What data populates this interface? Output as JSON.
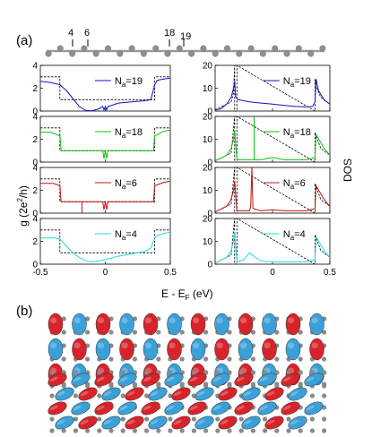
{
  "figure": {
    "panel_a_label": "(a)",
    "panel_b_label": "(b)",
    "chain_markers": [
      "4",
      "6",
      "18",
      "19"
    ],
    "left_ylabel_parts": {
      "g": "g (2e",
      "sup": "2",
      "tail": "/h)"
    },
    "right_ylabel": "DOS",
    "xlabel_parts": {
      "e": "E - E",
      "sub": "F",
      "tail": " (eV)"
    },
    "left_xticks": [
      "-0.5",
      "0",
      "0.5"
    ],
    "right_xticks": [
      "0",
      "0.5"
    ],
    "left_yticks": [
      "0",
      "2",
      "4"
    ],
    "right_yticks": [
      "0",
      "10",
      "20"
    ],
    "legend_prefix": "N",
    "legend_sub": "a",
    "rows": [
      {
        "na": "=19",
        "color": "#1010d0"
      },
      {
        "na": "=18",
        "color": "#10c010"
      },
      {
        "na": "=6",
        "color": "#c01010"
      },
      {
        "na": "=4",
        "color": "#20d8e0"
      }
    ],
    "dash_color": "#000000",
    "lobe_colors": {
      "red": "#d8232a",
      "blue": "#3aa0d8",
      "atom": "#8a8a8a"
    }
  },
  "chart_data": [
    {
      "type": "line",
      "panel": "g-Na19",
      "xlim": [
        -0.5,
        0.5
      ],
      "ylim": [
        0,
        4
      ],
      "ylabel": "g (2e2/h)",
      "xlabel": "E - EF (eV)",
      "series": [
        {
          "name": "Na=19",
          "x": [
            -0.5,
            -0.42,
            -0.35,
            -0.3,
            -0.25,
            -0.2,
            -0.15,
            -0.1,
            -0.05,
            -0.02,
            -0.01,
            0,
            0.01,
            0.02,
            0.05,
            0.1,
            0.2,
            0.3,
            0.35,
            0.38,
            0.4,
            0.45,
            0.5
          ],
          "y": [
            2.6,
            2.5,
            2.3,
            1.8,
            1.1,
            0.4,
            0.05,
            0.02,
            0.2,
            0.4,
            0.1,
            0.4,
            0.1,
            0.4,
            0.5,
            0.7,
            0.8,
            0.9,
            1.0,
            2.3,
            2.7,
            2.8,
            2.9
          ]
        },
        {
          "x": [
            -0.5,
            -0.35,
            -0.35,
            0.38,
            0.38,
            0.5
          ],
          "y": [
            3,
            3,
            1,
            1,
            3,
            3
          ]
        }
      ]
    },
    {
      "type": "line",
      "panel": "DOS-Na19",
      "xlim": [
        -0.5,
        0.5
      ],
      "ylim": [
        0,
        20
      ],
      "ylabel": "DOS",
      "series": [
        {
          "name": "Na=19",
          "x": [
            -0.5,
            -0.45,
            -0.4,
            -0.36,
            -0.34,
            -0.33,
            -0.32,
            -0.3,
            -0.2,
            -0.1,
            0,
            0.1,
            0.2,
            0.3,
            0.35,
            0.37,
            0.38,
            0.4,
            0.45,
            0.5
          ],
          "y": [
            0.5,
            1,
            3,
            6,
            10,
            13,
            6,
            5,
            4,
            3.5,
            3,
            2.5,
            2,
            1.8,
            2,
            4,
            14,
            9,
            5,
            3
          ]
        },
        {
          "x": [
            -0.5,
            -0.36,
            -0.34,
            -0.33,
            -0.33,
            -0.31,
            -0.31,
            0.37,
            0.37,
            0.38,
            0.42,
            0.5
          ],
          "y": [
            0.5,
            4,
            8,
            20,
            0,
            0,
            20,
            0,
            14,
            11,
            6,
            3
          ]
        }
      ]
    },
    {
      "type": "line",
      "panel": "g-Na18",
      "xlim": [
        -0.5,
        0.5
      ],
      "ylim": [
        0,
        4
      ],
      "ylabel": "g (2e2/h)",
      "series": [
        {
          "name": "Na=18",
          "x": [
            -0.5,
            -0.42,
            -0.35,
            -0.34,
            -0.3,
            -0.1,
            -0.02,
            -0.01,
            0,
            0.01,
            0.02,
            0.1,
            0.3,
            0.37,
            0.38,
            0.45,
            0.5
          ],
          "y": [
            2.6,
            2.6,
            2.3,
            1,
            1,
            1,
            1,
            0.3,
            1,
            0.3,
            1,
            1,
            1,
            1,
            2.3,
            2.7,
            2.8
          ]
        },
        {
          "x": [
            -0.5,
            -0.35,
            -0.35,
            0.38,
            0.38,
            0.5
          ],
          "y": [
            3,
            3,
            1,
            1,
            3,
            3
          ]
        }
      ]
    },
    {
      "type": "line",
      "panel": "DOS-Na18",
      "xlim": [
        -0.5,
        0.5
      ],
      "ylim": [
        0,
        20
      ],
      "ylabel": "DOS",
      "series": [
        {
          "name": "Na=18",
          "x": [
            -0.5,
            -0.4,
            -0.36,
            -0.34,
            -0.33,
            -0.31,
            -0.2,
            -0.16,
            -0.16,
            -0.16,
            -0.1,
            0,
            0.1,
            0.3,
            0.37,
            0.38,
            0.45,
            0.5
          ],
          "y": [
            0.5,
            3,
            6,
            10,
            14,
            1,
            1,
            1,
            20,
            1,
            1,
            2,
            1,
            1,
            2,
            12,
            6,
            3
          ]
        },
        {
          "x": [
            -0.5,
            -0.36,
            -0.33,
            -0.33,
            -0.31,
            -0.31,
            0.37,
            0.37,
            0.42,
            0.5
          ],
          "y": [
            0.5,
            4,
            20,
            0,
            0,
            20,
            0,
            13,
            6,
            3
          ]
        }
      ]
    },
    {
      "type": "line",
      "panel": "g-Na6",
      "xlim": [
        -0.5,
        0.5
      ],
      "ylim": [
        0,
        4
      ],
      "ylabel": "g (2e2/h)",
      "series": [
        {
          "name": "Na=6",
          "x": [
            -0.5,
            -0.4,
            -0.35,
            -0.34,
            -0.2,
            -0.18,
            -0.18,
            -0.18,
            -0.02,
            -0.01,
            0,
            0.01,
            0.02,
            0.3,
            0.37,
            0.38,
            0.45,
            0.5
          ],
          "y": [
            2.6,
            2.6,
            2.4,
            1,
            1,
            1,
            0,
            1,
            1,
            0.3,
            1,
            0.3,
            1,
            1,
            1,
            2.4,
            2.7,
            2.8
          ]
        },
        {
          "x": [
            -0.5,
            -0.35,
            -0.35,
            0.38,
            0.38,
            0.5
          ],
          "y": [
            3,
            3,
            1,
            1,
            3,
            3
          ]
        }
      ]
    },
    {
      "type": "line",
      "panel": "DOS-Na6",
      "xlim": [
        -0.5,
        0.5
      ],
      "ylim": [
        0,
        20
      ],
      "ylabel": "DOS",
      "series": [
        {
          "name": "Na=6",
          "x": [
            -0.5,
            -0.4,
            -0.36,
            -0.34,
            -0.33,
            -0.31,
            -0.2,
            -0.19,
            -0.18,
            -0.17,
            -0.1,
            0,
            0.1,
            0.3,
            0.37,
            0.38,
            0.45,
            0.5
          ],
          "y": [
            0.5,
            3,
            6,
            10,
            14,
            1,
            1,
            3,
            20,
            2,
            1,
            1.5,
            1,
            1,
            2,
            12,
            6,
            3
          ]
        },
        {
          "x": [
            -0.5,
            -0.36,
            -0.33,
            -0.33,
            -0.31,
            -0.31,
            0.37,
            0.37,
            0.42,
            0.5
          ],
          "y": [
            0.5,
            4,
            20,
            0,
            0,
            20,
            0,
            13,
            6,
            3
          ]
        }
      ]
    },
    {
      "type": "line",
      "panel": "g-Na4",
      "xlim": [
        -0.5,
        0.5
      ],
      "ylim": [
        0,
        4
      ],
      "ylabel": "g (2e2/h)",
      "series": [
        {
          "name": "Na=4",
          "x": [
            -0.5,
            -0.4,
            -0.35,
            -0.3,
            -0.25,
            -0.2,
            -0.15,
            -0.1,
            -0.05,
            0,
            0.05,
            0.1,
            0.2,
            0.3,
            0.35,
            0.38,
            0.4,
            0.45,
            0.5
          ],
          "y": [
            2.3,
            2.3,
            2.2,
            1.6,
            1.0,
            0.6,
            0.3,
            0.2,
            0.3,
            0.4,
            0.55,
            0.7,
            0.9,
            1.1,
            1.4,
            2.3,
            2.5,
            2.7,
            2.8
          ]
        },
        {
          "x": [
            -0.5,
            -0.35,
            -0.35,
            0.38,
            0.38,
            0.5
          ],
          "y": [
            3,
            3,
            1,
            1,
            3,
            3
          ]
        }
      ]
    },
    {
      "type": "line",
      "panel": "DOS-Na4",
      "xlim": [
        -0.5,
        0.5
      ],
      "ylim": [
        0,
        20
      ],
      "ylabel": "DOS",
      "xlabel": "E - EF (eV)",
      "series": [
        {
          "name": "Na=4",
          "x": [
            -0.5,
            -0.4,
            -0.36,
            -0.34,
            -0.33,
            -0.31,
            -0.25,
            -0.2,
            -0.15,
            -0.1,
            0,
            0.1,
            0.3,
            0.37,
            0.38,
            0.45,
            0.5
          ],
          "y": [
            0.5,
            3,
            6,
            10,
            14,
            1,
            2,
            5,
            3,
            1.5,
            1,
            1,
            1,
            2,
            12,
            6,
            3
          ]
        },
        {
          "x": [
            -0.5,
            -0.36,
            -0.33,
            -0.33,
            -0.31,
            -0.31,
            0.37,
            0.37,
            0.42,
            0.5
          ],
          "y": [
            0.5,
            4,
            20,
            0,
            0,
            20,
            0,
            13,
            6,
            3
          ]
        }
      ]
    }
  ]
}
